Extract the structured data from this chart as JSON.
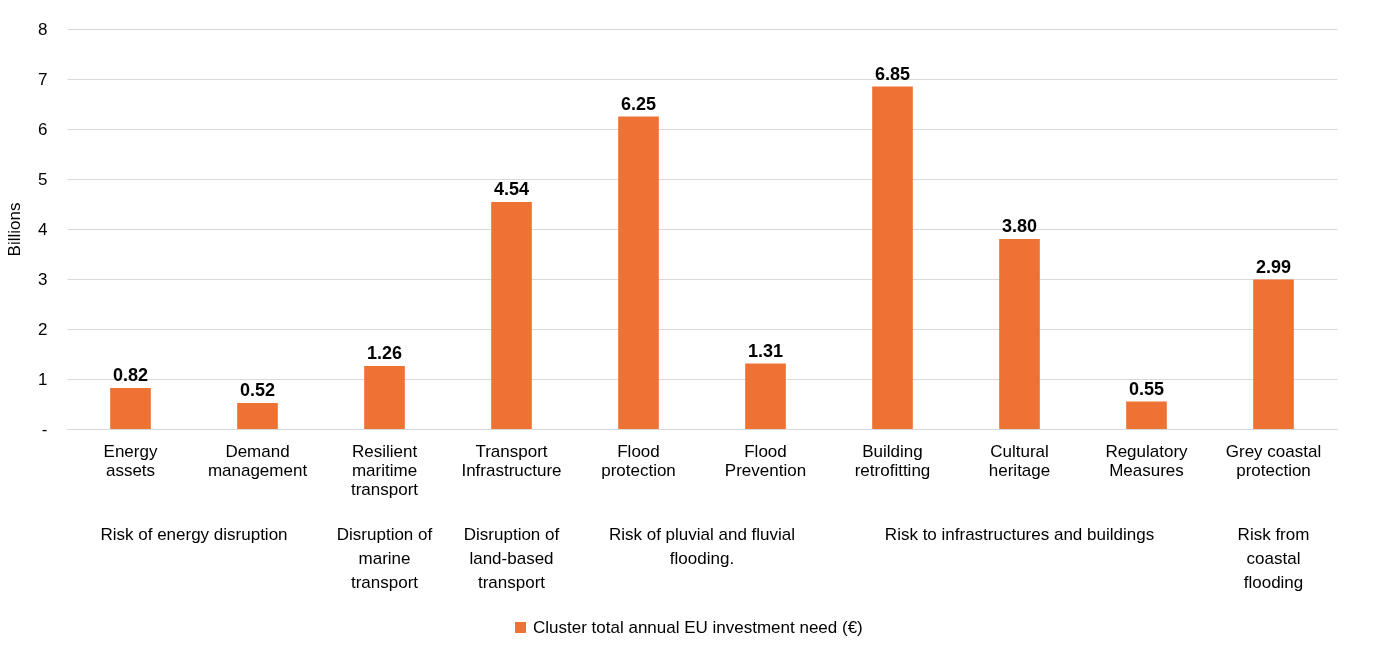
{
  "chart_data": {
    "type": "bar",
    "ylabel": "Billions",
    "categories": [
      "Energy assets",
      "Demand management",
      "Resilient maritime transport",
      "Transport Infrastructure",
      "Flood protection",
      "Flood Prevention",
      "Building retrofitting",
      "Cultural heritage",
      "Regulatory Measures",
      "Grey coastal protection"
    ],
    "series": [
      {
        "name": "Cluster total annual EU investment need (€)",
        "color": "#ed7233",
        "values": [
          0.82,
          0.52,
          1.26,
          4.54,
          6.25,
          1.31,
          6.85,
          3.8,
          0.55,
          2.99
        ],
        "value_labels": [
          "0.82",
          "0.52",
          "1.26",
          "4.54",
          "6.25",
          "1.31",
          "6.85",
          "3.80",
          "0.55",
          "2.99"
        ]
      }
    ],
    "ylim": [
      0,
      8
    ],
    "yticks": [
      {
        "value": 0,
        "label": "-"
      },
      1,
      2,
      3,
      4,
      5,
      6,
      7,
      8
    ],
    "grid": "y",
    "legend": "bottom",
    "annotations": [
      "Risk of energy disruption",
      "Disruption of marine transport",
      "Disruption of land-based transport",
      "Risk of pluvial and fluvial flooding.",
      "Risk to infrastructures and buildings",
      "Risk from coastal flooding"
    ]
  }
}
